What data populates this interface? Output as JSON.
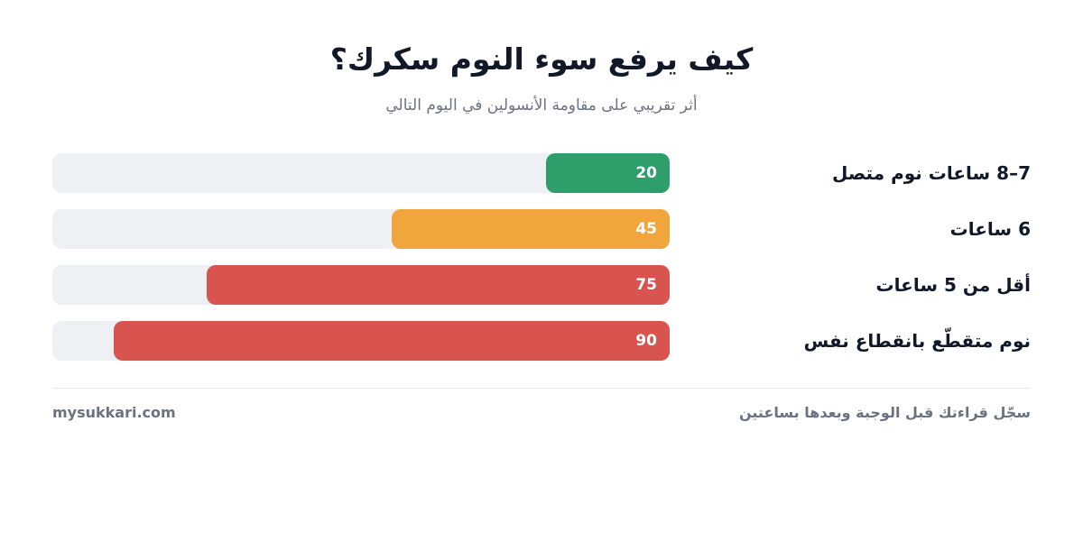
{
  "chart_data": {
    "type": "bar",
    "orientation": "horizontal",
    "title": "كيف يرفع سوء النوم سكرك؟",
    "subtitle": "أثر تقريبي على مقاومة الأنسولين في اليوم التالي",
    "xlim": [
      0,
      100
    ],
    "categories": [
      "7–8 ساعات نوم متصل",
      "6 ساعات",
      "أقل من 5 ساعات",
      "نوم متقطّع بانقطاع نفس"
    ],
    "values": [
      20,
      45,
      75,
      90
    ],
    "colors": [
      "#2e9f6b",
      "#f0a63c",
      "#d9534f",
      "#d9534f"
    ],
    "track_color": "#eef0f4"
  },
  "footer": {
    "site": "mysukkari.com",
    "cta": "سجّل قراءتك قبل الوجبة وبعدها بساعتين"
  }
}
